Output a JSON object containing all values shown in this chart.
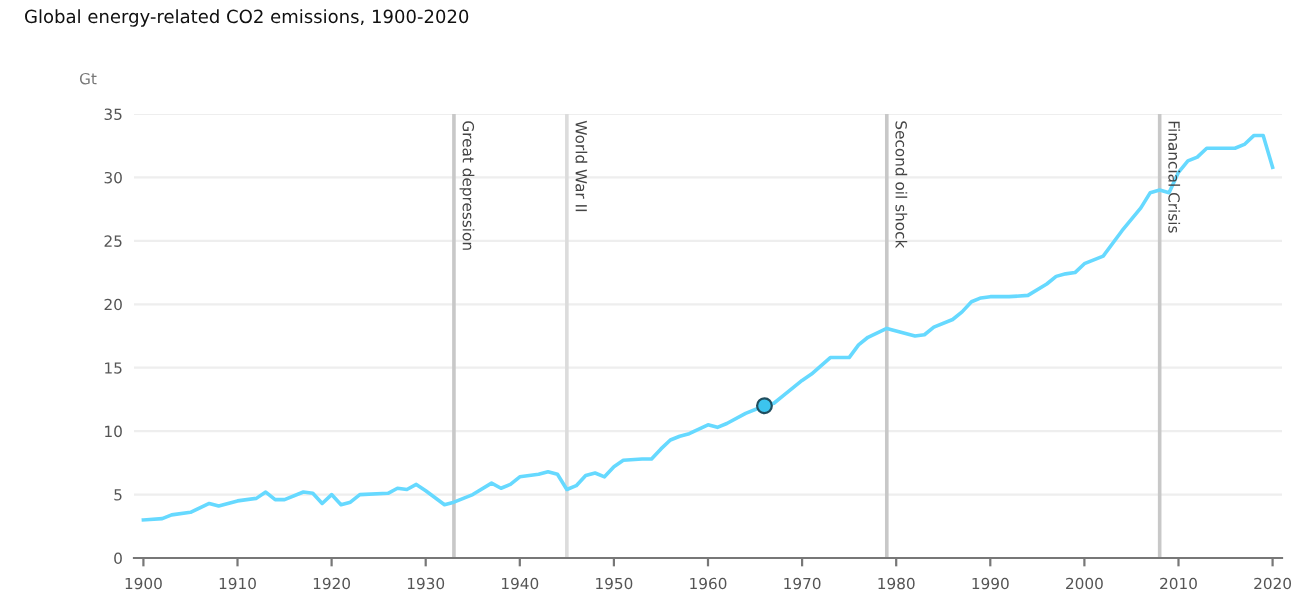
{
  "chart_data": {
    "type": "line",
    "title": "Global energy-related CO2 emissions, 1900-2020",
    "ylabel": "Gt",
    "series": [
      {
        "color": "#66d9ff",
        "x": [
          1900,
          1902,
          1903,
          1905,
          1907,
          1908,
          1910,
          1912,
          1913,
          1914,
          1915,
          1917,
          1918,
          1919,
          1920,
          1921,
          1922,
          1923,
          1926,
          1927,
          1928,
          1929,
          1930,
          1932,
          1933,
          1935,
          1937,
          1938,
          1939,
          1940,
          1942,
          1943,
          1944,
          1945,
          1946,
          1947,
          1948,
          1949,
          1950,
          1951,
          1953,
          1954,
          1955,
          1956,
          1957,
          1958,
          1960,
          1961,
          1962,
          1964,
          1966,
          1967,
          1968,
          1970,
          1971,
          1973,
          1975,
          1976,
          1977,
          1979,
          1981,
          1982,
          1983,
          1984,
          1986,
          1987,
          1988,
          1989,
          1990,
          1992,
          1994,
          1996,
          1997,
          1998,
          1999,
          2000,
          2002,
          2004,
          2006,
          2007,
          2008,
          2009,
          2010,
          2011,
          2012,
          2013,
          2015,
          2016,
          2017,
          2018,
          2019,
          2020
        ],
        "values": [
          3.0,
          3.1,
          3.4,
          3.6,
          4.3,
          4.1,
          4.5,
          4.7,
          5.2,
          4.6,
          4.6,
          5.2,
          5.1,
          4.3,
          5.0,
          4.2,
          4.4,
          5.0,
          5.1,
          5.5,
          5.4,
          5.8,
          5.3,
          4.2,
          4.4,
          5.0,
          5.9,
          5.5,
          5.8,
          6.4,
          6.6,
          6.8,
          6.6,
          5.4,
          5.7,
          6.5,
          6.7,
          6.4,
          7.2,
          7.7,
          7.8,
          7.8,
          8.6,
          9.3,
          9.6,
          9.8,
          10.5,
          10.3,
          10.6,
          11.4,
          12.0,
          12.2,
          12.8,
          14.0,
          14.5,
          15.8,
          15.8,
          16.8,
          17.4,
          18.1,
          17.7,
          17.5,
          17.6,
          18.2,
          18.8,
          19.4,
          20.2,
          20.5,
          20.6,
          20.6,
          20.7,
          21.6,
          22.2,
          22.4,
          22.5,
          23.2,
          23.8,
          25.8,
          27.6,
          28.8,
          29.0,
          28.8,
          30.4,
          31.3,
          31.6,
          32.3,
          32.3,
          32.3,
          32.6,
          33.3,
          33.3,
          30.8
        ]
      },
      {
        "type": "scatter",
        "color": "#3cc4ee",
        "x": [
          1966
        ],
        "values": [
          12.0
        ]
      }
    ],
    "ref_lines": [
      {
        "axis": "x",
        "value": 1933,
        "label": "Great depression",
        "color": "#c8c8c8"
      },
      {
        "axis": "x",
        "value": 1945,
        "label": "World War II",
        "color": "#dcdcdc"
      },
      {
        "axis": "x",
        "value": 1979,
        "label": "Second oil shock",
        "color": "#c8c8c8"
      },
      {
        "axis": "x",
        "value": 2008,
        "label": "Financial Crisis",
        "color": "#c8c8c8"
      }
    ],
    "xlim": [
      1899,
      2021
    ],
    "xticks": [
      1900,
      1910,
      1920,
      1930,
      1940,
      1950,
      1960,
      1970,
      1980,
      1990,
      2000,
      2010,
      2020
    ],
    "ylim": [
      0,
      35
    ],
    "yticks": [
      0,
      5,
      10,
      15,
      20,
      25,
      30,
      35
    ],
    "grid": "y",
    "legend": false
  }
}
